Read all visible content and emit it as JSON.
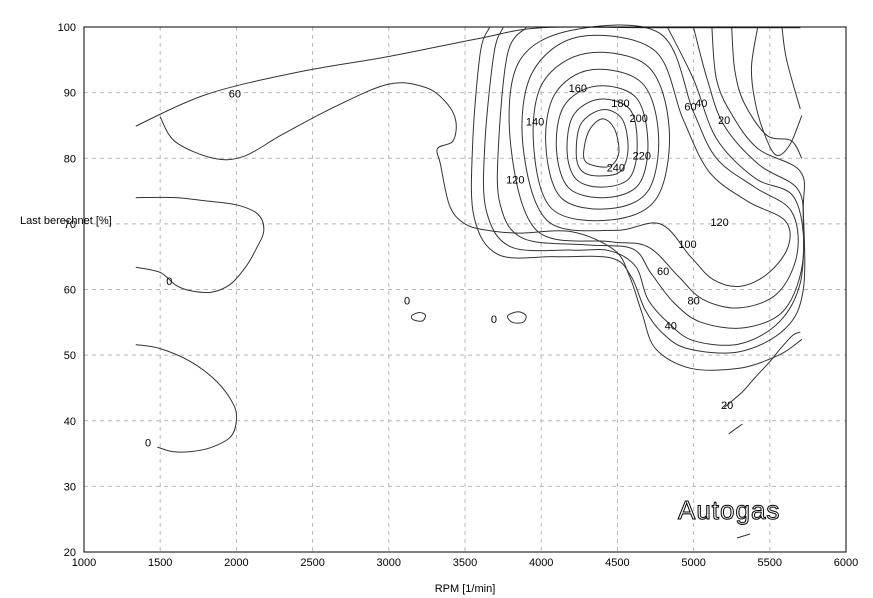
{
  "chart_data": {
    "type": "contour",
    "xlabel": "RPM [1/min]",
    "ylabel": "Last berechnet [%]",
    "xlim": [
      1000,
      6000
    ],
    "ylim": [
      20,
      100
    ],
    "x_ticks": [
      1000,
      1500,
      2000,
      2500,
      3000,
      3500,
      4000,
      4500,
      5000,
      5500,
      6000
    ],
    "y_ticks": [
      20,
      30,
      40,
      50,
      60,
      70,
      80,
      90,
      100
    ],
    "grid": true,
    "watermark": "Autogas",
    "contour_levels": [
      0,
      20,
      40,
      60,
      80,
      100,
      120,
      140,
      160,
      180,
      200,
      220,
      240
    ],
    "labels": [
      {
        "text": "60",
        "x": 1990,
        "y": 89.9
      },
      {
        "text": "0",
        "x": 1560,
        "y": 61.3
      },
      {
        "text": "0",
        "x": 1420,
        "y": 36.7
      },
      {
        "text": "0",
        "x": 3120,
        "y": 58.3
      },
      {
        "text": "0",
        "x": 3690,
        "y": 55.5
      },
      {
        "text": "160",
        "x": 4240,
        "y": 90.7
      },
      {
        "text": "180",
        "x": 4520,
        "y": 88.4
      },
      {
        "text": "200",
        "x": 4640,
        "y": 86.1
      },
      {
        "text": "140",
        "x": 3960,
        "y": 85.6
      },
      {
        "text": "220",
        "x": 4660,
        "y": 80.4
      },
      {
        "text": "240",
        "x": 4490,
        "y": 78.6
      },
      {
        "text": "120",
        "x": 3830,
        "y": 76.8
      },
      {
        "text": "60",
        "x": 4980,
        "y": 87.9
      },
      {
        "text": "40",
        "x": 5050,
        "y": 88.4
      },
      {
        "text": "20",
        "x": 5200,
        "y": 85.8
      },
      {
        "text": "120",
        "x": 5170,
        "y": 70.3
      },
      {
        "text": "100",
        "x": 4960,
        "y": 66.9
      },
      {
        "text": "60",
        "x": 4800,
        "y": 62.8
      },
      {
        "text": "80",
        "x": 5000,
        "y": 58.3
      },
      {
        "text": "40",
        "x": 4850,
        "y": 54.5
      },
      {
        "text": "20",
        "x": 5220,
        "y": 42.4
      }
    ],
    "lines": [
      {
        "name": "boundary",
        "points": [
          [
            1340,
            84.9
          ],
          [
            1800,
            89.7
          ],
          [
            2400,
            93.1
          ],
          [
            3000,
            95.5
          ],
          [
            3600,
            98.3
          ],
          [
            4000,
            99.9
          ],
          [
            4700,
            99.9
          ],
          [
            5700,
            99.9
          ]
        ]
      },
      {
        "name": "60-left",
        "points": [
          [
            1500,
            86.3
          ],
          [
            1600,
            82.5
          ],
          [
            1850,
            80.0
          ],
          [
            2050,
            80.3
          ],
          [
            2300,
            83.6
          ],
          [
            2650,
            87.9
          ],
          [
            3000,
            91.3
          ],
          [
            3240,
            90.8
          ],
          [
            3380,
            88.4
          ],
          [
            3440,
            85.6
          ],
          [
            3420,
            82.6
          ],
          [
            3320,
            81.5
          ],
          [
            3340,
            79.0
          ],
          [
            3400,
            72.7
          ],
          [
            3500,
            70.0
          ],
          [
            3650,
            69.0
          ],
          [
            3850,
            68.6
          ],
          [
            4200,
            68.8
          ],
          [
            4480,
            66.0
          ],
          [
            4580,
            62.0
          ],
          [
            4660,
            56.5
          ],
          [
            4750,
            51.0
          ],
          [
            4980,
            48.0
          ],
          [
            5300,
            48.0
          ],
          [
            5560,
            50.0
          ],
          [
            5710,
            52.4
          ]
        ]
      },
      {
        "name": "20-right",
        "points": [
          [
            5200,
            42.0
          ],
          [
            5320,
            44.4
          ],
          [
            5400,
            46.5
          ],
          [
            5500,
            49.0
          ],
          [
            5570,
            51.0
          ],
          [
            5650,
            53.0
          ],
          [
            5700,
            53.5
          ]
        ]
      },
      {
        "name": "0-left-mid",
        "points": [
          [
            1340,
            63.4
          ],
          [
            1500,
            62.6
          ],
          [
            1600,
            60.7
          ],
          [
            1700,
            59.8
          ],
          [
            1840,
            59.6
          ],
          [
            1960,
            60.8
          ],
          [
            2060,
            63.4
          ],
          [
            2130,
            66.2
          ],
          [
            2180,
            69.0
          ],
          [
            2140,
            71.5
          ],
          [
            2000,
            72.9
          ],
          [
            1800,
            73.5
          ],
          [
            1600,
            74.0
          ],
          [
            1340,
            74.0
          ]
        ]
      },
      {
        "name": "0-left-low",
        "points": [
          [
            1340,
            51.6
          ],
          [
            1500,
            51.0
          ],
          [
            1700,
            49.0
          ],
          [
            1870,
            46.0
          ],
          [
            1980,
            42.5
          ],
          [
            2000,
            40.0
          ],
          [
            1960,
            37.5
          ],
          [
            1830,
            35.9
          ],
          [
            1700,
            35.3
          ],
          [
            1580,
            35.3
          ],
          [
            1480,
            36.0
          ]
        ]
      },
      {
        "name": "0-island-a",
        "closed": true,
        "points": [
          [
            3150,
            56.0
          ],
          [
            3200,
            56.5
          ],
          [
            3240,
            56.1
          ],
          [
            3220,
            55.2
          ],
          [
            3160,
            55.4
          ]
        ]
      },
      {
        "name": "0-island-b",
        "closed": true,
        "points": [
          [
            3780,
            56.0
          ],
          [
            3850,
            56.6
          ],
          [
            3900,
            56.0
          ],
          [
            3880,
            55.0
          ],
          [
            3810,
            55.0
          ]
        ]
      },
      {
        "name": "r1",
        "closed": true,
        "points": [
          [
            4280,
            80.0
          ],
          [
            4310,
            84.0
          ],
          [
            4400,
            86.0
          ],
          [
            4480,
            84.5
          ],
          [
            4510,
            81.0
          ],
          [
            4460,
            78.9
          ],
          [
            4360,
            78.8
          ]
        ]
      },
      {
        "name": "r2",
        "closed": true,
        "points": [
          [
            4230,
            80.5
          ],
          [
            4260,
            85.2
          ],
          [
            4400,
            87.4
          ],
          [
            4530,
            86.0
          ],
          [
            4570,
            81.5
          ],
          [
            4520,
            78.0
          ],
          [
            4380,
            77.3
          ],
          [
            4270,
            78.0
          ]
        ]
      },
      {
        "name": "r3",
        "closed": true,
        "points": [
          [
            4170,
            81.0
          ],
          [
            4210,
            86.5
          ],
          [
            4380,
            89.0
          ],
          [
            4580,
            87.5
          ],
          [
            4630,
            82.0
          ],
          [
            4580,
            77.0
          ],
          [
            4400,
            75.6
          ],
          [
            4230,
            76.8
          ]
        ]
      },
      {
        "name": "r4",
        "closed": true,
        "points": [
          [
            4100,
            81.5
          ],
          [
            4150,
            88.0
          ],
          [
            4360,
            91.0
          ],
          [
            4620,
            89.3
          ],
          [
            4700,
            82.5
          ],
          [
            4640,
            76.0
          ],
          [
            4420,
            74.0
          ],
          [
            4180,
            75.5
          ]
        ]
      },
      {
        "name": "r5",
        "closed": true,
        "points": [
          [
            4030,
            82.0
          ],
          [
            4090,
            89.8
          ],
          [
            4330,
            93.5
          ],
          [
            4660,
            91.5
          ],
          [
            4770,
            83.5
          ],
          [
            4700,
            75.0
          ],
          [
            4440,
            72.3
          ],
          [
            4130,
            74.0
          ]
        ]
      },
      {
        "name": "r6",
        "closed": true,
        "points": [
          [
            3950,
            82.0
          ],
          [
            4010,
            91.5
          ],
          [
            4300,
            96.0
          ],
          [
            4700,
            94.0
          ],
          [
            4840,
            84.5
          ],
          [
            4760,
            74.0
          ],
          [
            4460,
            70.6
          ],
          [
            4070,
            72.3
          ]
        ]
      },
      {
        "name": "r7",
        "closed": true,
        "points": [
          [
            3880,
            82.0
          ],
          [
            3940,
            93.0
          ],
          [
            4250,
            98.5
          ],
          [
            4740,
            96.5
          ],
          [
            4930,
            86.0
          ],
          [
            5100,
            78.0
          ],
          [
            5350,
            73.5
          ],
          [
            5600,
            70.5
          ],
          [
            5620,
            66.5
          ],
          [
            5490,
            62.5
          ],
          [
            5310,
            60.5
          ],
          [
            5130,
            61.5
          ],
          [
            4980,
            65.0
          ],
          [
            4780,
            70.0
          ],
          [
            4480,
            69.0
          ],
          [
            4040,
            70.5
          ]
        ]
      },
      {
        "name": "r8",
        "closed": true,
        "points": [
          [
            3800,
            82.0
          ],
          [
            3850,
            94.5
          ],
          [
            4200,
            99.5
          ],
          [
            4780,
            99.0
          ],
          [
            5000,
            87.0
          ],
          [
            5150,
            80.0
          ],
          [
            5400,
            75.6
          ],
          [
            5640,
            72.0
          ],
          [
            5680,
            65.5
          ],
          [
            5550,
            59.4
          ],
          [
            5300,
            57.2
          ],
          [
            5060,
            58.5
          ],
          [
            4900,
            62.0
          ],
          [
            4700,
            66.5
          ],
          [
            4450,
            67.3
          ],
          [
            3970,
            69.0
          ]
        ]
      },
      {
        "name": "r9",
        "points": [
          [
            4830,
            99.9
          ],
          [
            5000,
            92.0
          ],
          [
            5150,
            83.0
          ],
          [
            5400,
            77.0
          ],
          [
            5660,
            74.0
          ],
          [
            5720,
            65.0
          ],
          [
            5600,
            57.0
          ],
          [
            5340,
            54.2
          ],
          [
            5050,
            55.0
          ],
          [
            4870,
            58.0
          ],
          [
            4720,
            62.5
          ],
          [
            4600,
            66.2
          ],
          [
            4300,
            66.8
          ],
          [
            3880,
            67.8
          ],
          [
            3730,
            73.0
          ],
          [
            3720,
            82.0
          ],
          [
            3780,
            96.0
          ],
          [
            3900,
            99.9
          ]
        ]
      },
      {
        "name": "r10",
        "points": [
          [
            5000,
            99.9
          ],
          [
            5090,
            92.0
          ],
          [
            5200,
            85.0
          ],
          [
            5430,
            79.0
          ],
          [
            5680,
            75.4
          ],
          [
            5720,
            70.0
          ],
          [
            5700,
            61.0
          ],
          [
            5560,
            55.0
          ],
          [
            5300,
            51.7
          ],
          [
            5000,
            52.2
          ],
          [
            4830,
            55.0
          ],
          [
            4700,
            58.5
          ],
          [
            4620,
            63.5
          ],
          [
            4450,
            65.9
          ],
          [
            4200,
            66.0
          ],
          [
            3800,
            66.5
          ],
          [
            3640,
            72.0
          ],
          [
            3630,
            82.0
          ],
          [
            3690,
            96.0
          ],
          [
            3750,
            99.9
          ]
        ]
      },
      {
        "name": "r11",
        "points": [
          [
            5120,
            99.9
          ],
          [
            5150,
            92.0
          ],
          [
            5250,
            86.7
          ],
          [
            5420,
            81.5
          ],
          [
            5700,
            78.0
          ],
          [
            5720,
            72.0
          ],
          [
            5720,
            60.0
          ],
          [
            5600,
            54.0
          ],
          [
            5300,
            50.5
          ],
          [
            4960,
            51.0
          ],
          [
            4790,
            53.5
          ],
          [
            4680,
            57.0
          ],
          [
            4590,
            62.0
          ],
          [
            4460,
            64.8
          ],
          [
            4100,
            65.0
          ],
          [
            3720,
            65.3
          ],
          [
            3560,
            71.0
          ],
          [
            3550,
            82.0
          ],
          [
            3600,
            96.0
          ],
          [
            3660,
            99.9
          ]
        ]
      },
      {
        "name": "r12",
        "points": [
          [
            5250,
            99.9
          ],
          [
            5270,
            93.5
          ],
          [
            5330,
            88.5
          ],
          [
            5480,
            83.5
          ],
          [
            5640,
            82.7
          ],
          [
            5710,
            80.0
          ]
        ]
      },
      {
        "name": "r13",
        "points": [
          [
            5420,
            99.9
          ],
          [
            5380,
            94.0
          ],
          [
            5400,
            89.0
          ],
          [
            5460,
            84.0
          ],
          [
            5540,
            80.5
          ],
          [
            5630,
            82.0
          ],
          [
            5710,
            86.5
          ]
        ]
      },
      {
        "name": "r14",
        "points": [
          [
            5580,
            99.9
          ],
          [
            5610,
            95.0
          ],
          [
            5700,
            87.5
          ]
        ]
      },
      {
        "name": "r15",
        "points": [
          [
            5230,
            38.0
          ],
          [
            5320,
            39.5
          ]
        ]
      }
    ]
  }
}
